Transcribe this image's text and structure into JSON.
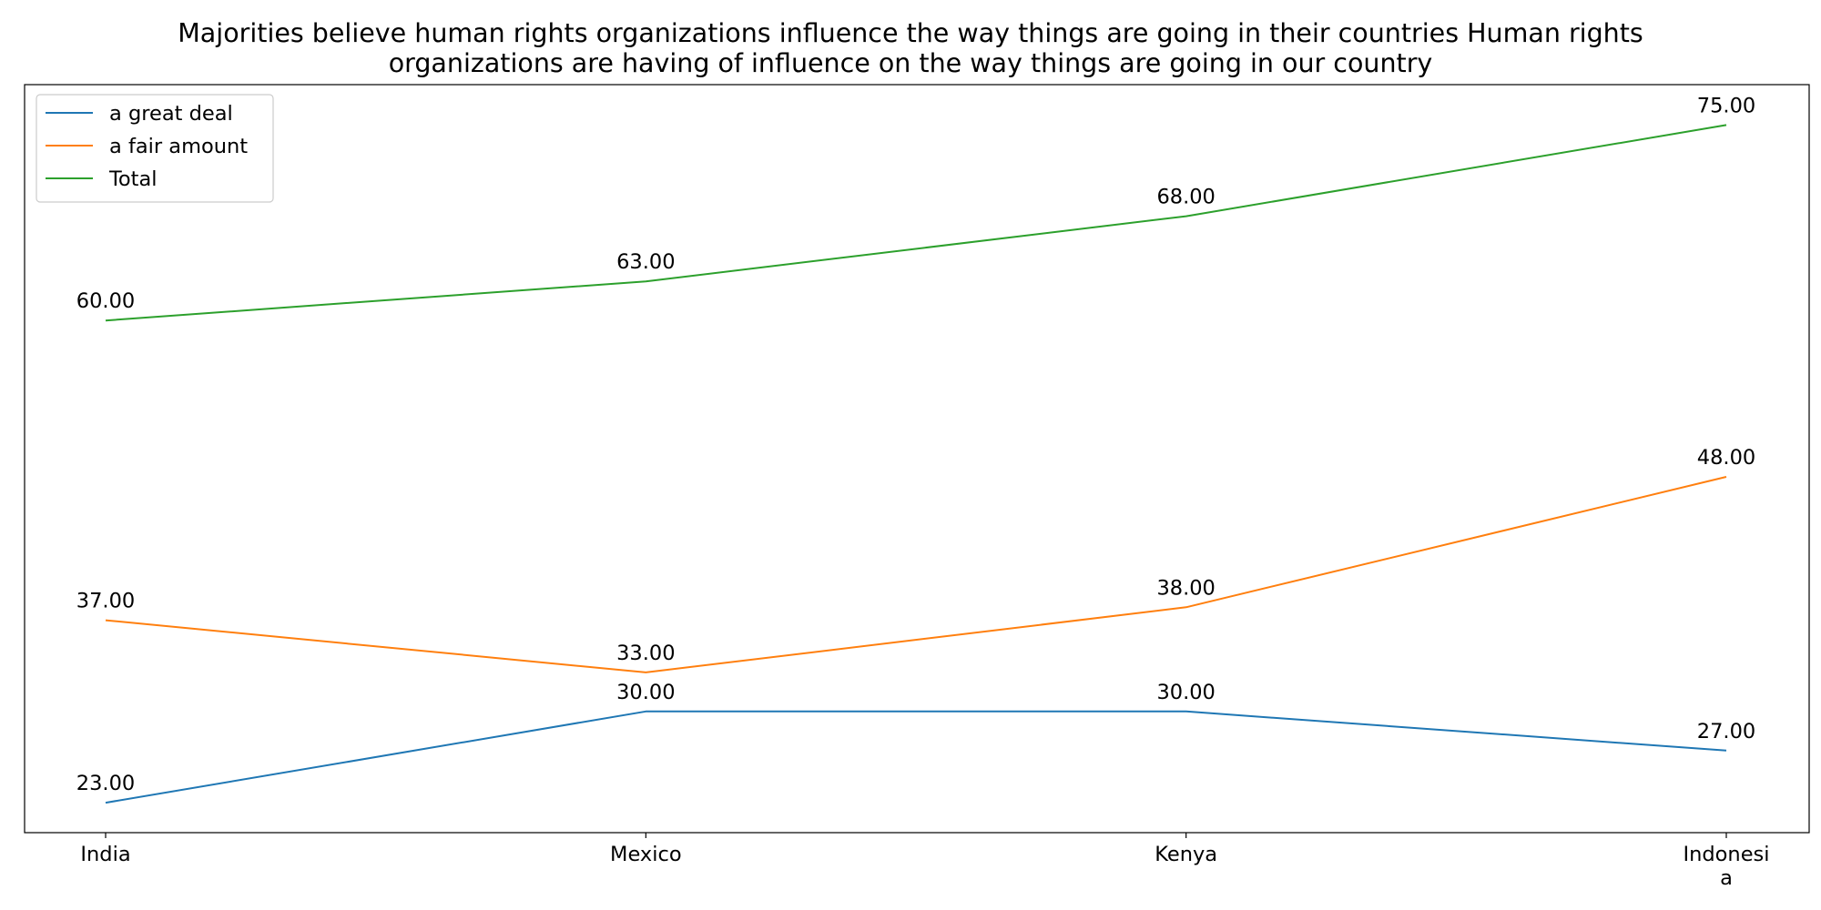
{
  "chart_data": {
    "type": "line",
    "title_lines": [
      "Majorities believe human rights organizations influence the way things are going in their countries Human rights",
      "organizations are having of influence on the way things are going in our country"
    ],
    "categories": [
      "India",
      "Mexico",
      "Kenya",
      "Indonesia"
    ],
    "category_tick_lines": [
      [
        "India"
      ],
      [
        "Mexico"
      ],
      [
        "Kenya"
      ],
      [
        "Indonesi",
        "a"
      ]
    ],
    "xlabel": "",
    "ylabel": "",
    "ylim": [
      20.7,
      78.1
    ],
    "grid": false,
    "y_ticks_shown": false,
    "legend_position": "top-left",
    "series": [
      {
        "name": "a great deal",
        "color": "#1f77b4",
        "values": [
          23,
          30,
          30,
          27
        ],
        "labels": [
          "23.00",
          "30.00",
          "30.00",
          "27.00"
        ]
      },
      {
        "name": "a fair amount",
        "color": "#ff7f0e",
        "values": [
          37,
          33,
          38,
          48
        ],
        "labels": [
          "37.00",
          "33.00",
          "38.00",
          "48.00"
        ]
      },
      {
        "name": "Total",
        "color": "#2ca02c",
        "values": [
          60,
          63,
          68,
          75
        ],
        "labels": [
          "60.00",
          "63.00",
          "68.00",
          "75.00"
        ]
      }
    ]
  }
}
